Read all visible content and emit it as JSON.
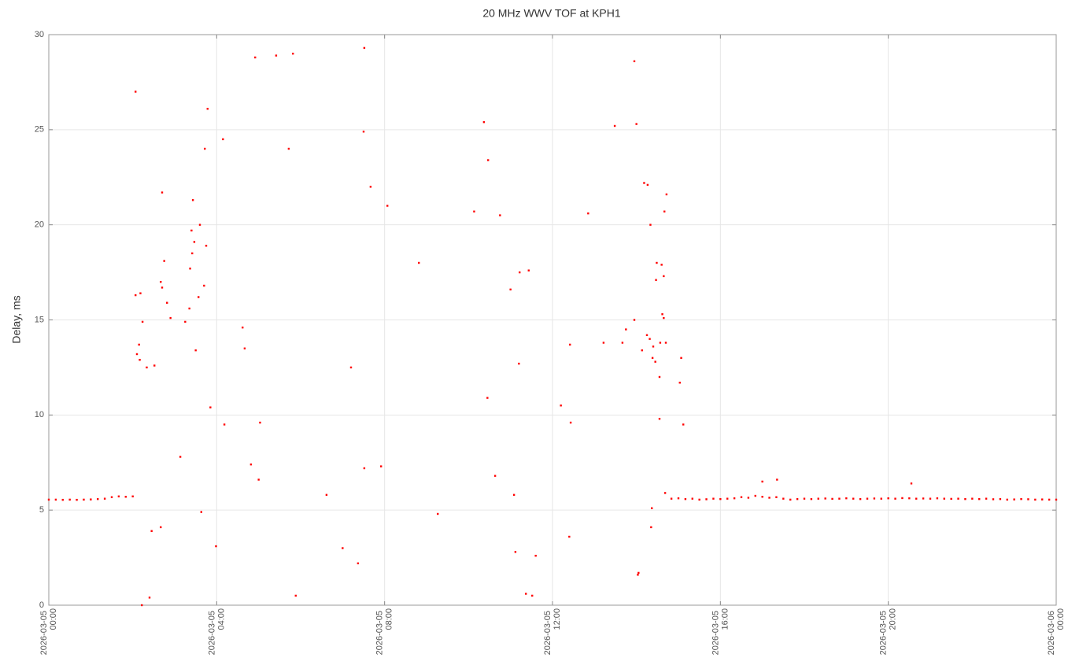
{
  "chart_data": {
    "type": "scatter",
    "title": "20 MHz WWV TOF at KPH1",
    "y_label": "Delay, ms",
    "color": "#ff0000",
    "grid": true,
    "xlim": [
      "2026-03-05 00:00",
      "2026-03-06 00:00"
    ],
    "xticks": [
      "2026-03-05 00:00",
      "2026-03-05 04:00",
      "2026-03-05 08:00",
      "2026-03-05 12:00",
      "2026-03-05 16:00",
      "2026-03-05 20:00",
      "2026-03-06 00:00"
    ],
    "ylim": [
      0,
      30
    ],
    "yticks": [
      0,
      5,
      10,
      15,
      20,
      25,
      30
    ],
    "x": [
      "2026-03-05 00:00",
      "2026-03-05 00:10",
      "2026-03-05 00:20",
      "2026-03-05 00:30",
      "2026-03-05 00:40",
      "2026-03-05 00:50",
      "2026-03-05 01:00",
      "2026-03-05 01:10",
      "2026-03-05 01:20",
      "2026-03-05 01:30",
      "2026-03-05 01:40",
      "2026-03-05 01:50",
      "2026-03-05 02:00",
      "2026-03-05 14:50",
      "2026-03-05 15:00",
      "2026-03-05 15:10",
      "2026-03-05 15:20",
      "2026-03-05 15:30",
      "2026-03-05 15:40",
      "2026-03-05 15:50",
      "2026-03-05 16:00",
      "2026-03-05 16:10",
      "2026-03-05 16:20",
      "2026-03-05 16:30",
      "2026-03-05 16:40",
      "2026-03-05 16:50",
      "2026-03-05 17:00",
      "2026-03-05 17:10",
      "2026-03-05 17:20",
      "2026-03-05 17:30",
      "2026-03-05 17:40",
      "2026-03-05 17:50",
      "2026-03-05 18:00",
      "2026-03-05 18:10",
      "2026-03-05 18:20",
      "2026-03-05 18:30",
      "2026-03-05 18:40",
      "2026-03-05 18:50",
      "2026-03-05 19:00",
      "2026-03-05 19:10",
      "2026-03-05 19:20",
      "2026-03-05 19:30",
      "2026-03-05 19:40",
      "2026-03-05 19:50",
      "2026-03-05 20:00",
      "2026-03-05 20:10",
      "2026-03-05 20:20",
      "2026-03-05 20:30",
      "2026-03-05 20:40",
      "2026-03-05 20:50",
      "2026-03-05 21:00",
      "2026-03-05 21:10",
      "2026-03-05 21:20",
      "2026-03-05 21:30",
      "2026-03-05 21:40",
      "2026-03-05 21:50",
      "2026-03-05 22:00",
      "2026-03-05 22:10",
      "2026-03-05 22:20",
      "2026-03-05 22:30",
      "2026-03-05 22:40",
      "2026-03-05 22:50",
      "2026-03-05 23:00",
      "2026-03-05 23:10",
      "2026-03-05 23:20",
      "2026-03-05 23:30",
      "2026-03-05 23:40",
      "2026-03-05 23:50",
      "2026-03-06 00:00",
      "2026-03-05 02:04",
      "2026-03-05 02:04",
      "2026-03-05 02:11",
      "2026-03-05 02:06",
      "2026-03-05 02:09",
      "2026-03-05 02:10",
      "2026-03-05 02:14",
      "2026-03-05 02:20",
      "2026-03-05 02:13",
      "2026-03-05 02:24",
      "2026-03-05 02:27",
      "2026-03-05 02:31",
      "2026-03-05 02:40",
      "2026-03-05 02:42",
      "2026-03-05 02:40",
      "2026-03-05 02:42",
      "2026-03-05 02:45",
      "2026-03-05 02:49",
      "2026-03-05 02:54",
      "2026-03-05 03:08",
      "2026-03-05 03:15",
      "2026-03-05 03:21",
      "2026-03-05 03:22",
      "2026-03-05 03:24",
      "2026-03-05 03:25",
      "2026-03-05 03:26",
      "2026-03-05 03:28",
      "2026-03-05 03:30",
      "2026-03-05 03:34",
      "2026-03-05 03:36",
      "2026-03-05 03:38",
      "2026-03-05 03:42",
      "2026-03-05 03:43",
      "2026-03-05 03:45",
      "2026-03-05 03:47",
      "2026-03-05 03:51",
      "2026-03-05 03:59",
      "2026-03-05 04:09",
      "2026-03-05 04:11",
      "2026-03-05 04:37",
      "2026-03-05 04:40",
      "2026-03-05 04:49",
      "2026-03-05 04:55",
      "2026-03-05 05:02",
      "2026-03-05 05:00",
      "2026-03-05 05:25",
      "2026-03-05 05:43",
      "2026-03-05 05:49",
      "2026-03-05 05:53",
      "2026-03-05 06:37",
      "2026-03-05 07:00",
      "2026-03-05 07:12",
      "2026-03-05 07:22",
      "2026-03-05 07:31",
      "2026-03-05 07:30",
      "2026-03-05 07:31",
      "2026-03-05 07:40",
      "2026-03-05 07:55",
      "2026-03-05 08:04",
      "2026-03-05 08:49",
      "2026-03-05 09:16",
      "2026-03-05 10:08",
      "2026-03-05 10:22",
      "2026-03-05 10:28",
      "2026-03-05 10:27",
      "2026-03-05 10:38",
      "2026-03-05 10:45",
      "2026-03-05 11:00",
      "2026-03-05 11:05",
      "2026-03-05 11:07",
      "2026-03-05 11:12",
      "2026-03-05 11:13",
      "2026-03-05 11:26",
      "2026-03-05 11:22",
      "2026-03-05 11:31",
      "2026-03-05 11:36",
      "2026-03-05 12:12",
      "2026-03-05 12:25",
      "2026-03-05 12:26",
      "2026-03-05 12:24",
      "2026-03-05 12:51",
      "2026-03-05 13:13",
      "2026-03-05 13:29",
      "2026-03-05 13:40",
      "2026-03-05 13:45",
      "2026-03-05 13:57",
      "2026-03-05 14:00",
      "2026-03-05 13:57",
      "2026-03-05 14:03",
      "2026-03-05 14:02",
      "2026-03-05 14:08",
      "2026-03-05 14:11",
      "2026-03-05 14:16",
      "2026-03-05 14:15",
      "2026-03-05 14:19",
      "2026-03-05 14:20",
      "2026-03-05 14:23",
      "2026-03-05 14:24",
      "2026-03-05 14:27",
      "2026-03-05 14:22",
      "2026-03-05 14:21",
      "2026-03-05 14:28",
      "2026-03-05 14:29",
      "2026-03-05 14:33",
      "2026-03-05 14:33",
      "2026-03-05 14:34",
      "2026-03-05 14:36",
      "2026-03-05 14:37",
      "2026-03-05 14:39",
      "2026-03-05 14:39",
      "2026-03-05 14:40",
      "2026-03-05 14:42",
      "2026-03-05 14:43",
      "2026-03-05 14:41",
      "2026-03-05 15:02",
      "2026-03-05 15:04",
      "2026-03-05 15:07",
      "2026-03-05 17:00",
      "2026-03-05 17:21",
      "2026-03-05 20:33"
    ],
    "values": [
      5.55,
      5.55,
      5.54,
      5.55,
      5.54,
      5.55,
      5.56,
      5.58,
      5.6,
      5.68,
      5.72,
      5.7,
      5.72,
      5.6,
      5.62,
      5.58,
      5.6,
      5.55,
      5.57,
      5.6,
      5.58,
      5.6,
      5.62,
      5.68,
      5.65,
      5.75,
      5.7,
      5.65,
      5.68,
      5.6,
      5.55,
      5.58,
      5.6,
      5.58,
      5.6,
      5.61,
      5.59,
      5.6,
      5.62,
      5.6,
      5.58,
      5.6,
      5.61,
      5.6,
      5.62,
      5.6,
      5.63,
      5.62,
      5.6,
      5.61,
      5.6,
      5.62,
      5.6,
      5.59,
      5.6,
      5.58,
      5.6,
      5.58,
      5.6,
      5.57,
      5.58,
      5.55,
      5.56,
      5.58,
      5.57,
      5.55,
      5.56,
      5.55,
      5.55,
      27.0,
      16.3,
      16.4,
      13.2,
      13.7,
      12.9,
      14.9,
      12.5,
      0.0,
      0.4,
      3.9,
      12.6,
      4.1,
      21.7,
      17.0,
      16.7,
      18.1,
      15.9,
      15.1,
      7.8,
      14.9,
      15.6,
      17.7,
      19.7,
      18.5,
      21.3,
      19.1,
      13.4,
      16.2,
      20.0,
      4.9,
      16.8,
      24.0,
      18.9,
      26.1,
      10.4,
      3.1,
      24.5,
      9.5,
      14.6,
      13.5,
      7.4,
      28.8,
      9.6,
      6.6,
      28.9,
      24.0,
      29.0,
      0.5,
      5.8,
      3.0,
      12.5,
      2.2,
      29.3,
      24.9,
      7.2,
      22.0,
      7.3,
      21.0,
      18.0,
      4.8,
      20.7,
      25.4,
      23.4,
      10.9,
      6.8,
      20.5,
      16.6,
      5.8,
      2.8,
      12.7,
      17.5,
      17.6,
      0.6,
      0.5,
      2.6,
      10.5,
      13.7,
      9.6,
      3.6,
      20.6,
      13.8,
      25.2,
      13.8,
      14.5,
      28.6,
      25.3,
      15.0,
      1.7,
      1.6,
      13.4,
      22.2,
      22.1,
      14.2,
      14.0,
      20.0,
      13.0,
      13.6,
      12.8,
      5.1,
      4.1,
      17.1,
      18.0,
      12.0,
      9.8,
      13.8,
      17.9,
      15.3,
      15.1,
      17.3,
      20.7,
      13.8,
      21.6,
      5.9,
      11.7,
      13.0,
      9.5,
      6.5,
      6.6,
      6.4
    ]
  }
}
